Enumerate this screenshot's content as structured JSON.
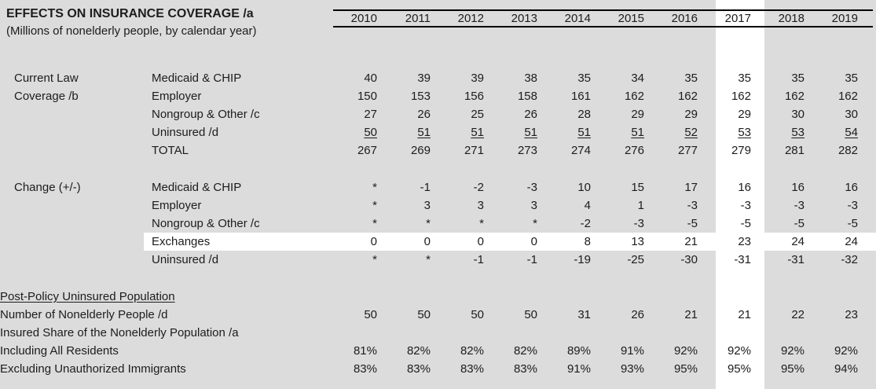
{
  "page": {
    "background_color": "#dcdcdc",
    "highlight_color": "#ffffff",
    "text_color": "#1c1c1c",
    "rule_color": "#000000"
  },
  "table": {
    "title": "EFFECTS ON INSURANCE COVERAGE /a",
    "subtitle": "(Millions of nonelderly people, by calendar year)",
    "years": [
      "2010",
      "2011",
      "2012",
      "2013",
      "2014",
      "2015",
      "2016",
      "2017",
      "2018",
      "2019"
    ],
    "highlighted_year": "2017",
    "highlighted_row_label": "Exchanges",
    "sections": [
      {
        "group_label_lines": [
          "Current Law",
          "Coverage /b"
        ],
        "rows": [
          {
            "label": "Medicaid & CHIP",
            "values": [
              "40",
              "39",
              "39",
              "38",
              "35",
              "34",
              "35",
              "35",
              "35",
              "35"
            ]
          },
          {
            "label": "Employer",
            "values": [
              "150",
              "153",
              "156",
              "158",
              "161",
              "162",
              "162",
              "162",
              "162",
              "162"
            ]
          },
          {
            "label": "Nongroup & Other /c",
            "values": [
              "27",
              "26",
              "25",
              "26",
              "28",
              "29",
              "29",
              "29",
              "30",
              "30"
            ]
          },
          {
            "label": "Uninsured /d",
            "underline_values": true,
            "values": [
              "50",
              "51",
              "51",
              "51",
              "51",
              "51",
              "52",
              "53",
              "53",
              "54"
            ]
          },
          {
            "label": "TOTAL",
            "values": [
              "267",
              "269",
              "271",
              "273",
              "274",
              "276",
              "277",
              "279",
              "281",
              "282"
            ]
          }
        ]
      },
      {
        "group_label_lines": [
          "Change (+/-)"
        ],
        "rows": [
          {
            "label": "Medicaid & CHIP",
            "values": [
              "*",
              "-1",
              "-2",
              "-3",
              "10",
              "15",
              "17",
              "16",
              "16",
              "16"
            ]
          },
          {
            "label": "Employer",
            "values": [
              "*",
              "3",
              "3",
              "3",
              "4",
              "1",
              "-3",
              "-3",
              "-3",
              "-3"
            ]
          },
          {
            "label": "Nongroup & Other /c",
            "values": [
              "*",
              "*",
              "*",
              "*",
              "-2",
              "-3",
              "-5",
              "-5",
              "-5",
              "-5"
            ]
          },
          {
            "label": "Exchanges",
            "highlight": true,
            "values": [
              "0",
              "0",
              "0",
              "0",
              "8",
              "13",
              "21",
              "23",
              "24",
              "24"
            ]
          },
          {
            "label": "Uninsured /d",
            "values": [
              "*",
              "*",
              "-1",
              "-1",
              "-19",
              "-25",
              "-30",
              "-31",
              "-31",
              "-32"
            ]
          }
        ]
      },
      {
        "rows": [
          {
            "label": "Post-Policy Uninsured Population",
            "indent": 0,
            "underline_label": true,
            "values": [
              "",
              "",
              "",
              "",
              "",
              "",
              "",
              "",
              "",
              ""
            ]
          },
          {
            "label": "Number of Nonelderly People /d",
            "indent": 1,
            "values": [
              "50",
              "50",
              "50",
              "50",
              "31",
              "26",
              "21",
              "21",
              "22",
              "23"
            ]
          },
          {
            "label": "Insured Share of the Nonelderly Population /a",
            "indent": 1,
            "values": [
              "",
              "",
              "",
              "",
              "",
              "",
              "",
              "",
              "",
              ""
            ]
          },
          {
            "label": "Including All Residents",
            "indent": 2,
            "values": [
              "81%",
              "82%",
              "82%",
              "82%",
              "89%",
              "91%",
              "92%",
              "92%",
              "92%",
              "92%"
            ]
          },
          {
            "label": "Excluding Unauthorized Immigrants",
            "indent": 2,
            "values": [
              "83%",
              "83%",
              "83%",
              "83%",
              "91%",
              "93%",
              "95%",
              "95%",
              "95%",
              "94%"
            ]
          }
        ]
      }
    ]
  }
}
